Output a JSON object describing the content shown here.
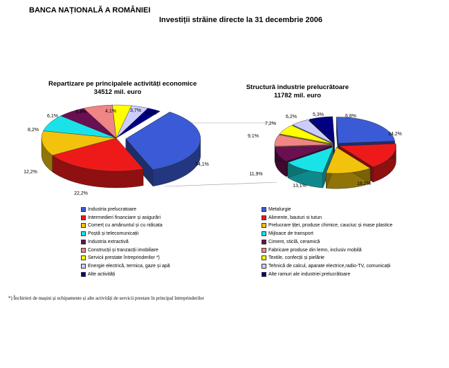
{
  "header": {
    "bank": "BANCA NAȚIONALĂ A ROMÂNIEI",
    "title": "Investiții străine directe la 31 decembrie 2006"
  },
  "chart_data": [
    {
      "type": "pie",
      "title": "Repartizare pe principalele activități economice",
      "subtitle": "34512 mil. euro",
      "categories": [
        "Industria prelucratoare",
        "Intermedieri financiare și asigurări",
        "Comerț cu amănuntul și cu ridicata",
        "Poștă și telecomunicații",
        "Industria extractivă",
        "Construcții și tranzacții imobiliare",
        "Servicii prestate întreprinderilor *)",
        "Energie electrică, termica, gaze și apă",
        "Alte activități"
      ],
      "values": [
        34.1,
        22.2,
        12.2,
        8.2,
        6.1,
        6.4,
        4.1,
        3.7,
        3.0
      ],
      "labels": [
        "34,1%",
        "22,2%",
        "12,2%",
        "8,2%",
        "6,1%",
        "6,4%",
        "4,1%",
        "3,7%",
        "3,0%"
      ],
      "colors": [
        "#3b5bd6",
        "#ee1a1a",
        "#f2c20c",
        "#19e3e8",
        "#6a0f52",
        "#f08585",
        "#ffff00",
        "#ccccff",
        "#000080"
      ],
      "exploded": 0
    },
    {
      "type": "pie",
      "title": "Structură industrie prelucrătoare",
      "subtitle": "11782 mil. euro",
      "categories": [
        "Metalurgie",
        "Alimente, bauturi si tutun",
        "Prelucrare țiței, produse chimice, cauciuc și mase plastice",
        "Mijloace de transport",
        "Ciment, sticlă, ceramică",
        "Fabricare produse din lemn, inclusiv mobilă",
        "Textile, confecții și pielărie",
        "Tehnică de calcul, aparate electrice,radio-TV, comunicații",
        "Alte ramuri ale industriei prelucrătoare"
      ],
      "values": [
        24.2,
        16.2,
        13.1,
        11.9,
        9.1,
        7.2,
        6.2,
        5.3,
        6.8
      ],
      "labels": [
        "24,2%",
        "16,2%",
        "13,1%",
        "11,9%",
        "9,1%",
        "7,2%",
        "6,2%",
        "5,3%",
        "6,8%"
      ],
      "colors": [
        "#3b5bd6",
        "#ee1a1a",
        "#f2c20c",
        "#19e3e8",
        "#6a0f52",
        "#f08585",
        "#ffff00",
        "#ccccff",
        "#000080"
      ],
      "exploded": "all"
    }
  ],
  "footnote": "*) Închirieri de mașini și echipamente și alte activități de servicii prestate în principal întreprinderilor"
}
